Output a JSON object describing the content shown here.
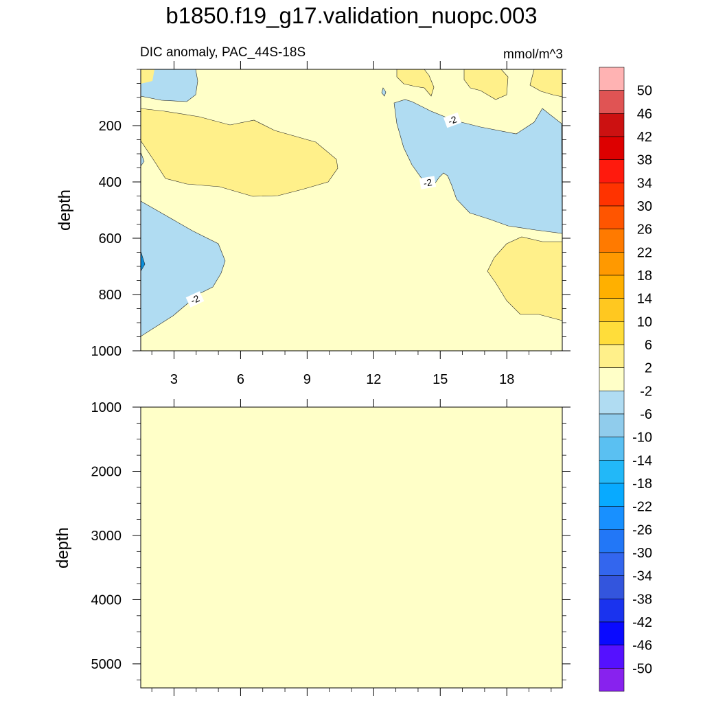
{
  "chart_data": {
    "type": "contour",
    "title": "b1850.f19_g17.validation_nuopc.003",
    "subtitle": "DIC anomaly, PAC_44S-18S",
    "units": "mmol/m^3",
    "x_ticks": [
      3,
      6,
      9,
      12,
      15,
      18
    ],
    "xlim": [
      1.5,
      20.5
    ],
    "top_panel": {
      "ylabel": "depth",
      "ylim": [
        0,
        1000
      ],
      "y_ticks": [
        200,
        400,
        600,
        800,
        1000
      ],
      "contour_labels": [
        "-2",
        "-2",
        "-2"
      ],
      "background_range": "-2 to 2"
    },
    "bottom_panel": {
      "ylabel": "depth",
      "ylim": [
        1000,
        5375
      ],
      "y_ticks": [
        1000,
        2000,
        3000,
        4000,
        5000
      ],
      "background_range": "-2 to 2"
    },
    "colorbar": {
      "labels": [
        "50",
        "46",
        "42",
        "38",
        "34",
        "30",
        "26",
        "22",
        "18",
        "14",
        "10",
        "6",
        "2",
        "-2",
        "-6",
        "-10",
        "-14",
        "-18",
        "-22",
        "-26",
        "-30",
        "-34",
        "-38",
        "-42",
        "-46",
        "-50"
      ],
      "colors": [
        "#ffb3b3",
        "#e05454",
        "#cc1111",
        "#dd0000",
        "#ff1a0d",
        "#ff3300",
        "#ff5500",
        "#ff7a00",
        "#ff9900",
        "#ffb000",
        "#ffc820",
        "#ffdd3a",
        "#fff08a",
        "#ffffc8",
        "#b0dcf2",
        "#90ccec",
        "#5ac0f2",
        "#22b8f8",
        "#08aaff",
        "#1890ff",
        "#2277f7",
        "#3366ee",
        "#3355dd",
        "#1a33ee",
        "#0a0aff",
        "#5511ff",
        "#8822ee"
      ]
    }
  }
}
